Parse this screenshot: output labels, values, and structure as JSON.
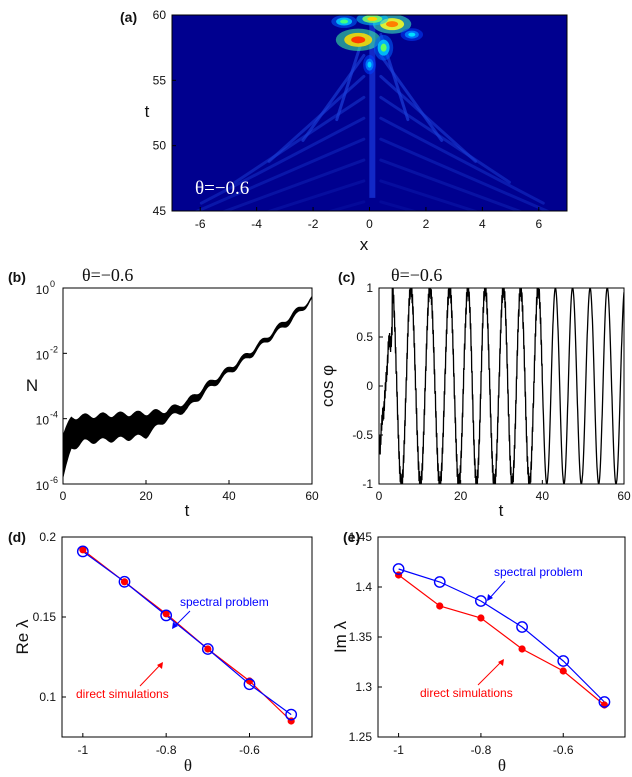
{
  "chart_data": [
    {
      "id": "a",
      "panel_label": "(a)",
      "type": "heatmap",
      "xlabel": "x",
      "ylabel": "t",
      "xlim": [
        -7,
        7
      ],
      "ylim": [
        45,
        60
      ],
      "xticks": [
        -6,
        -4,
        -2,
        0,
        2,
        4,
        6
      ],
      "yticks": [
        45,
        50,
        55,
        60
      ],
      "annotation": "θ=−0.6",
      "colormap": "jet",
      "description_of_field": "V-shaped intensity pattern growing in time, with bright peaks near x≈0 at t≈59–60"
    },
    {
      "id": "b",
      "panel_label": "(b)",
      "type": "line",
      "title": "θ=−0.6",
      "xlabel": "t",
      "ylabel": "N",
      "xlim": [
        0,
        60
      ],
      "ylim": [
        1e-06,
        1
      ],
      "yscale": "log",
      "xticks": [
        0,
        20,
        40,
        60
      ],
      "yticks": [
        1e-06,
        0.0001,
        0.01,
        1
      ],
      "ytick_labels": [
        "10",
        "10",
        "10",
        "10"
      ],
      "ytick_exponents": [
        "-6",
        "-4",
        "-2",
        "0"
      ],
      "series": [
        {
          "color": "#000000",
          "x": [
            0,
            2,
            5,
            10,
            15,
            20,
            25,
            30,
            35,
            40,
            45,
            50,
            55,
            60
          ],
          "y_low": [
            1.5e-06,
            1.2e-05,
            2e-05,
            2.2e-05,
            2.5e-05,
            3e-05,
            0.0001,
            0.0002,
            0.0008,
            0.0025,
            0.008,
            0.03,
            0.1,
            0.45
          ],
          "y_high": [
            3e-05,
            0.00011,
            0.00012,
            0.00013,
            0.00014,
            0.00015,
            0.00018,
            0.00035,
            0.0012,
            0.0035,
            0.011,
            0.04,
            0.15,
            0.5
          ]
        }
      ]
    },
    {
      "id": "c",
      "panel_label": "(c)",
      "type": "line",
      "title": "θ=−0.6",
      "xlabel": "t",
      "ylabel": "cos φ",
      "xlim": [
        0,
        60
      ],
      "ylim": [
        -1,
        1
      ],
      "xticks": [
        0,
        20,
        40,
        60
      ],
      "yticks": [
        -1,
        -0.5,
        0,
        0.5,
        1
      ],
      "ytick_labels": [
        "-1",
        "-0.5",
        "0",
        "0.5",
        "1"
      ],
      "series": [
        {
          "color": "#000000",
          "oscillation_peaks_t": [
            3.2,
            7.8,
            12.5,
            17.3,
            21.8,
            26.0,
            30.5,
            34.7,
            39.0,
            43.2,
            47.4,
            51.7,
            55.9,
            60.2
          ],
          "amplitude": 1
        }
      ]
    },
    {
      "id": "d",
      "panel_label": "(d)",
      "type": "line",
      "xlabel": "θ",
      "ylabel": "Re λ",
      "xlim": [
        -1.05,
        -0.45
      ],
      "ylim": [
        0.075,
        0.2
      ],
      "xticks": [
        -1,
        -0.8,
        -0.6
      ],
      "yticks": [
        0.1,
        0.15,
        0.2
      ],
      "ytick_labels": [
        "0.1",
        "0.15",
        "0.2"
      ],
      "series": [
        {
          "name": "spectral problem",
          "color": "#0000ff",
          "marker": "open-circle",
          "x": [
            -1,
            -0.9,
            -0.8,
            -0.7,
            -0.6,
            -0.5
          ],
          "y": [
            0.191,
            0.172,
            0.151,
            0.13,
            0.108,
            0.089
          ]
        },
        {
          "name": "direct simulations",
          "color": "#ff0000",
          "marker": "filled-circle",
          "x": [
            -1,
            -0.9,
            -0.8,
            -0.7,
            -0.6,
            -0.5
          ],
          "y": [
            0.192,
            0.172,
            0.152,
            0.13,
            0.11,
            0.085
          ]
        }
      ]
    },
    {
      "id": "e",
      "panel_label": "(e)",
      "type": "line",
      "xlabel": "θ",
      "ylabel": "Im λ",
      "xlim": [
        -1.05,
        -0.45
      ],
      "ylim": [
        1.25,
        1.45
      ],
      "xticks": [
        -1,
        -0.8,
        -0.6
      ],
      "yticks": [
        1.25,
        1.3,
        1.35,
        1.4,
        1.45
      ],
      "ytick_labels": [
        "1.25",
        "1.3",
        "1.35",
        "1.4",
        "1.45"
      ],
      "series": [
        {
          "name": "spectral problem",
          "color": "#0000ff",
          "marker": "open-circle",
          "x": [
            -1,
            -0.9,
            -0.8,
            -0.7,
            -0.6,
            -0.5
          ],
          "y": [
            1.418,
            1.405,
            1.386,
            1.36,
            1.326,
            1.285
          ]
        },
        {
          "name": "direct simulations",
          "color": "#ff0000",
          "marker": "filled-circle",
          "x": [
            -1,
            -0.9,
            -0.8,
            -0.7,
            -0.6,
            -0.5
          ],
          "y": [
            1.412,
            1.381,
            1.369,
            1.338,
            1.316,
            1.282
          ]
        }
      ]
    }
  ]
}
